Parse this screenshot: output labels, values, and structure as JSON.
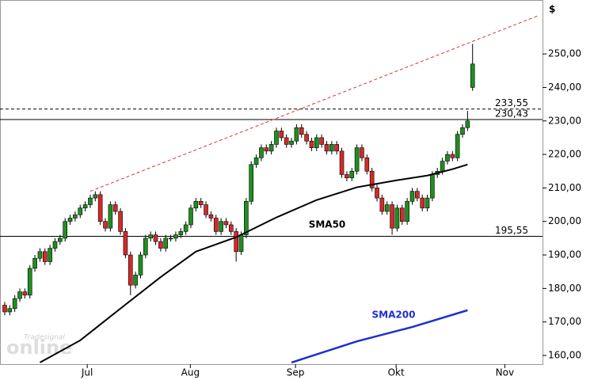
{
  "chart_data": {
    "type": "candlestick",
    "y_axis_label": "$",
    "watermark": "online",
    "watermark_small": "Tradesignal",
    "xlim": [
      -0.94,
      106.9
    ],
    "ylim": [
      157.4,
      266.1
    ],
    "xticks": [
      {
        "value": 16.4,
        "label": "Jul"
      },
      {
        "value": 36.9,
        "label": "Aug"
      },
      {
        "value": 57.8,
        "label": "Sep"
      },
      {
        "value": 77.8,
        "label": "Okt"
      },
      {
        "value": 99.4,
        "label": "Nov"
      }
    ],
    "yticks": [
      {
        "value": 160,
        "label": "160,00"
      },
      {
        "value": 170,
        "label": "170,00"
      },
      {
        "value": 180,
        "label": "180,00"
      },
      {
        "value": 190,
        "label": "190,00"
      },
      {
        "value": 200,
        "label": "200,00"
      },
      {
        "value": 210,
        "label": "210,00"
      },
      {
        "value": 220,
        "label": "220,00"
      },
      {
        "value": 230,
        "label": "230,00"
      },
      {
        "value": 240,
        "label": "240,00"
      },
      {
        "value": 250,
        "label": "250,00"
      }
    ],
    "up_color": "#1f8f1f",
    "down_color": "#d42a2a",
    "open": [
      175,
      173,
      174,
      177,
      179,
      178,
      186,
      189,
      191,
      188,
      192,
      194,
      195,
      200,
      201,
      202,
      204,
      205,
      207,
      208,
      200,
      198,
      205,
      203,
      197,
      190,
      181,
      184,
      190,
      195,
      196,
      194,
      192,
      195,
      195,
      196,
      197,
      199,
      204,
      206,
      205,
      202,
      201,
      197,
      200,
      199,
      197,
      191,
      196,
      206,
      217,
      219,
      222,
      221,
      223,
      227,
      225,
      223,
      224,
      228,
      226,
      224,
      222,
      225,
      223,
      221,
      223,
      221,
      214,
      213,
      215,
      222,
      219,
      215,
      210,
      207,
      203,
      205,
      198,
      204,
      200,
      206,
      209,
      207,
      204,
      207,
      214,
      215,
      218,
      220,
      219,
      226,
      228,
      240
    ],
    "high": [
      176,
      175,
      178,
      180,
      180,
      187,
      190,
      192,
      192,
      193,
      195,
      196,
      201,
      202,
      203,
      205,
      206,
      208,
      209,
      209,
      201,
      206,
      206,
      204,
      198,
      191,
      185,
      191,
      196,
      197,
      197,
      195,
      196,
      196,
      197,
      198,
      200,
      205,
      207,
      207,
      206,
      203,
      202,
      201,
      201,
      200,
      198,
      197,
      207,
      218,
      220,
      223,
      223,
      224,
      228,
      228,
      226,
      225,
      229,
      229,
      227,
      225,
      226,
      226,
      224,
      224,
      224,
      222,
      215,
      216,
      223,
      223,
      220,
      216,
      211,
      208,
      206,
      206,
      205,
      205,
      207,
      210,
      210,
      208,
      208,
      215,
      216,
      219,
      221,
      221,
      227,
      229,
      233,
      253
    ],
    "low": [
      172,
      172,
      173,
      176,
      177,
      177,
      185,
      188,
      187,
      187,
      191,
      193,
      194,
      199,
      200,
      201,
      203,
      204,
      206,
      199,
      197,
      197,
      202,
      196,
      189,
      178,
      180,
      183,
      189,
      194,
      193,
      191,
      191,
      194,
      194,
      195,
      196,
      198,
      203,
      204,
      201,
      200,
      196,
      196,
      198,
      196,
      188,
      190,
      195,
      205,
      216,
      218,
      220,
      220,
      222,
      224,
      222,
      222,
      223,
      225,
      223,
      221,
      221,
      222,
      220,
      220,
      220,
      213,
      212,
      212,
      214,
      218,
      214,
      209,
      206,
      202,
      202,
      196,
      197,
      199,
      199,
      205,
      206,
      203,
      203,
      206,
      213,
      214,
      217,
      218,
      218,
      225,
      227,
      239
    ],
    "close": [
      173,
      174,
      177,
      179,
      178,
      186,
      189,
      191,
      188,
      192,
      194,
      195,
      200,
      201,
      202,
      204,
      205,
      207,
      208,
      200,
      198,
      205,
      203,
      197,
      190,
      181,
      184,
      190,
      195,
      196,
      194,
      192,
      195,
      195,
      196,
      197,
      199,
      204,
      206,
      205,
      202,
      201,
      197,
      200,
      199,
      197,
      191,
      196,
      206,
      217,
      219,
      222,
      221,
      223,
      227,
      225,
      223,
      224,
      228,
      226,
      224,
      222,
      225,
      223,
      221,
      223,
      221,
      214,
      213,
      215,
      222,
      219,
      215,
      210,
      207,
      203,
      205,
      198,
      204,
      200,
      206,
      209,
      207,
      204,
      207,
      214,
      215,
      218,
      220,
      219,
      226,
      228,
      230,
      247
    ],
    "series": [
      {
        "name": "SMA50",
        "color": "#000000",
        "x": [
          7,
          15,
          23,
          31,
          38,
          46,
          54,
          62,
          70,
          78,
          84,
          89,
          92
        ],
        "values": [
          157.9,
          164.5,
          174,
          183.4,
          191,
          195.3,
          201.2,
          206.4,
          210.2,
          212.3,
          213.7,
          215.6,
          217
        ]
      },
      {
        "name": "SMA200",
        "color": "#1f2fd0",
        "x": [
          57,
          70,
          81,
          92
        ],
        "values": [
          157.9,
          164.2,
          168.5,
          173.5
        ]
      }
    ],
    "trendline": {
      "color": "#e03030",
      "x": [
        17,
        106
      ],
      "values": [
        209,
        261.4
      ]
    },
    "levels": [
      {
        "value": 233.55,
        "label": "233,55",
        "style": "dashed"
      },
      {
        "value": 230.43,
        "label": "230,43",
        "style": "solid"
      },
      {
        "value": 195.55,
        "label": "195,55",
        "style": "solid"
      }
    ]
  }
}
